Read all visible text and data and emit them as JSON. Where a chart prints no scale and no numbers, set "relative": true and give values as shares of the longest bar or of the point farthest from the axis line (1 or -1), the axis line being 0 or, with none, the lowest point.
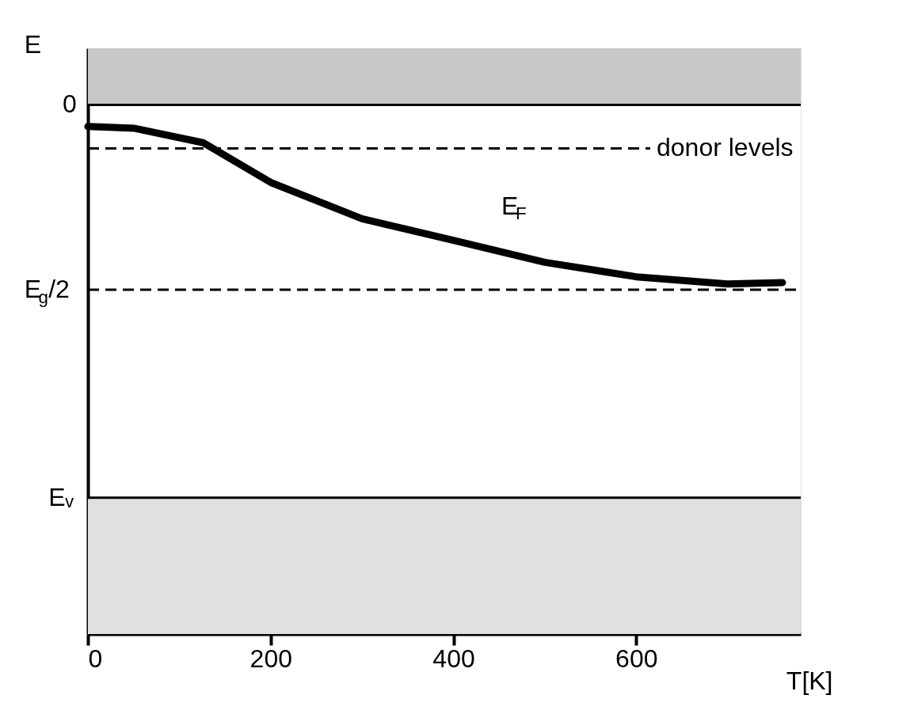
{
  "chart_data": {
    "type": "line",
    "relative": true,
    "xlabel": "T[K]",
    "ylabel": "E",
    "x": [
      0,
      50,
      126,
      200,
      300,
      400,
      500,
      600,
      700,
      760
    ],
    "series": [
      {
        "color": "#000000",
        "values": [
          -0.121,
          -0.13,
          -0.211,
          -0.433,
          -0.636,
          -0.757,
          -0.879,
          -0.96,
          -1,
          -0.992
        ]
      }
    ],
    "xlim": [
      0,
      780
    ],
    "xticks": [
      0,
      200,
      400,
      600
    ],
    "ref_lines": [
      {
        "axis": "y",
        "value": 0,
        "label": "0",
        "line_style": "solid"
      },
      {
        "axis": "y",
        "value": -0.243,
        "label": "donor levels",
        "line_style": "dashed"
      },
      {
        "axis": "y",
        "value": -1.032,
        "label": "E$_{g}$/2",
        "line_style": "dashed"
      },
      {
        "axis": "y",
        "value": -2.194,
        "label": "Eᵥ",
        "line_style": "solid"
      }
    ],
    "bands": [
      {
        "axis": "y",
        "from": 0,
        "to": 0.316,
        "color": "#c8c8c8"
      },
      {
        "axis": "y",
        "from": -2.955,
        "to": -2.194,
        "color": "#e0e0e0"
      }
    ],
    "annotations": [
      "E$_{F}$"
    ],
    "grid": false,
    "line_style": "solid"
  }
}
